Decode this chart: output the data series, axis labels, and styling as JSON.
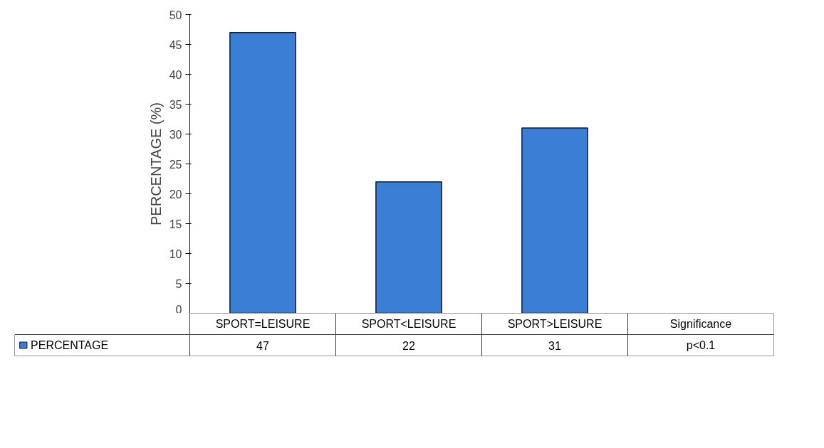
{
  "chart_data": {
    "type": "bar",
    "ylabel": "PERCENTAGE (%)",
    "categories": [
      "SPORT=LEISURE",
      "SPORT<LEISURE",
      "SPORT>LEISURE",
      "Significance"
    ],
    "series": [
      {
        "name": "PERCENTAGE",
        "color": "#3a7fd5",
        "values": [
          47,
          22,
          31,
          null
        ],
        "value_labels": [
          "47",
          "22",
          "31",
          "p<0.1"
        ]
      }
    ],
    "ylim": [
      0,
      50
    ],
    "yticks": [
      0,
      5,
      10,
      15,
      20,
      25,
      30,
      35,
      40,
      45,
      50
    ],
    "grid": false,
    "legend": "bottom left"
  }
}
